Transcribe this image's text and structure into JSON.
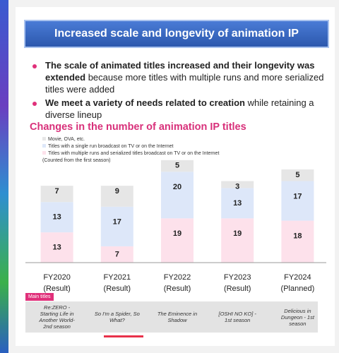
{
  "header": {
    "title": "Increased scale and longevity of animation IP"
  },
  "bullets": [
    {
      "bold": "The scale of animated titles increased and their longevity was extended",
      "text": " because more titles with multiple runs and more serialized titles were added"
    },
    {
      "bold": "We meet a variety of needs related to creation",
      "text": " while retaining a diverse lineup"
    }
  ],
  "chart_data": {
    "type": "stacked-bar",
    "title": "Changes in the number of animation IP titles",
    "note": "(Counted from the first season)",
    "categories": [
      "FY2020",
      "FY2021",
      "FY2022",
      "FY2023",
      "FY2024"
    ],
    "subcategories": [
      "(Result)",
      "(Result)",
      "(Result)",
      "(Result)",
      "(Planned)"
    ],
    "series": [
      {
        "name": "Titles with multiple runs and serialized titles broadcast on TV or on the Internet",
        "color": "#fde1eb",
        "values": [
          13,
          7,
          19,
          19,
          18
        ]
      },
      {
        "name": "Titles with a single run broadcast on TV or on the Internet",
        "color": "#dde7f9",
        "values": [
          13,
          17,
          20,
          13,
          17
        ]
      },
      {
        "name": "Movie, OVA, etc.",
        "color": "#e6e6e6",
        "values": [
          7,
          9,
          5,
          3,
          5
        ]
      }
    ]
  },
  "main_titles": {
    "label": "Main titles",
    "items": [
      "Re:ZERO - Starting Life in Another World- 2nd season",
      "So I'm a Spider, So What?",
      "The Eminence in Shadow",
      "[OSHI NO KO] - 1st season",
      "Delicious in Dungeon - 1st season"
    ]
  }
}
